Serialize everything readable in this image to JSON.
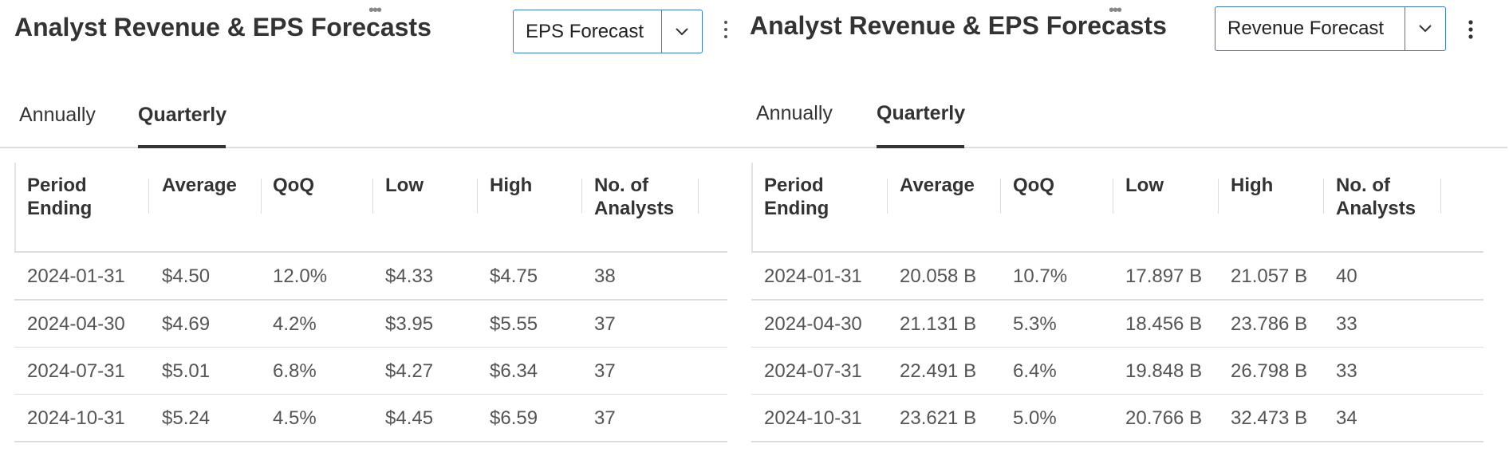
{
  "panels": [
    {
      "title": "Analyst Revenue & EPS Forecasts",
      "dropdown": "EPS Forecast",
      "tabs": [
        "Annually",
        "Quarterly"
      ],
      "table": {
        "headers": [
          "Period Ending",
          "Average",
          "QoQ",
          "Low",
          "High",
          "No. of Analysts"
        ],
        "rows": [
          [
            "2024-01-31",
            "$4.50",
            "12.0%",
            "$4.33",
            "$4.75",
            "38"
          ],
          [
            "2024-04-30",
            "$4.69",
            "4.2%",
            "$3.95",
            "$5.55",
            "37"
          ],
          [
            "2024-07-31",
            "$5.01",
            "6.8%",
            "$4.27",
            "$6.34",
            "37"
          ],
          [
            "2024-10-31",
            "$5.24",
            "4.5%",
            "$4.45",
            "$6.59",
            "37"
          ]
        ]
      }
    },
    {
      "title": "Analyst Revenue & EPS Forecasts",
      "dropdown": "Revenue Forecast",
      "tabs": [
        "Annually",
        "Quarterly"
      ],
      "table": {
        "headers": [
          "Period Ending",
          "Average",
          "QoQ",
          "Low",
          "High",
          "No. of Analysts"
        ],
        "rows": [
          [
            "2024-01-31",
            "20.058 B",
            "10.7%",
            "17.897 B",
            "21.057 B",
            "40"
          ],
          [
            "2024-04-30",
            "21.131 B",
            "5.3%",
            "18.456 B",
            "23.786 B",
            "33"
          ],
          [
            "2024-07-31",
            "22.491 B",
            "6.4%",
            "19.848 B",
            "26.798 B",
            "33"
          ],
          [
            "2024-10-31",
            "23.621 B",
            "5.0%",
            "20.766 B",
            "32.473 B",
            "34"
          ]
        ]
      }
    }
  ]
}
